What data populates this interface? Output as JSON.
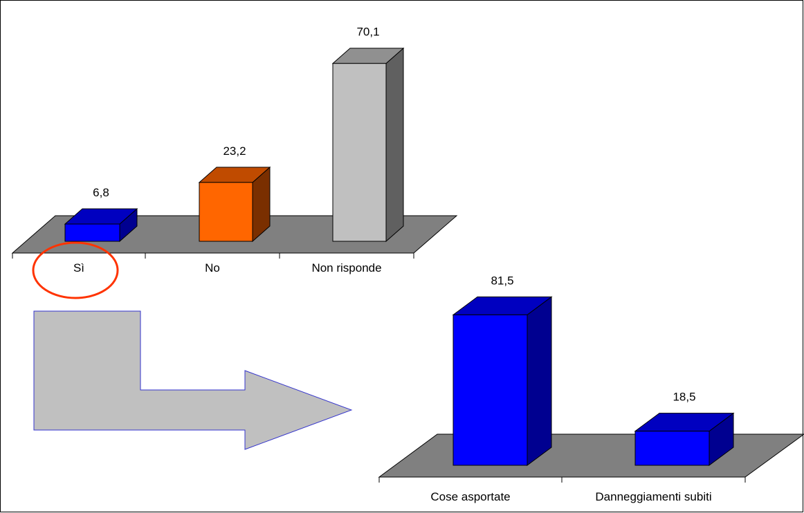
{
  "chart_data": [
    {
      "type": "bar",
      "categories": [
        "Sì",
        "No",
        "Non risponde"
      ],
      "values": [
        6.8,
        23.2,
        70.1
      ],
      "value_labels": [
        "6,8",
        "23,2",
        "70,1"
      ],
      "title": "",
      "xlabel": "",
      "ylabel": "",
      "ylim": [
        0,
        75
      ],
      "grid": false,
      "three_d": true,
      "bar_colors": [
        {
          "front": "#0000ff",
          "top": "#0000c0",
          "side": "#000090"
        },
        {
          "front": "#ff6600",
          "top": "#c04b00",
          "side": "#7a2f00"
        },
        {
          "front": "#c0c0c0",
          "top": "#909090",
          "side": "#606060"
        }
      ],
      "highlighted_category": "Sì"
    },
    {
      "type": "bar",
      "categories": [
        "Cose asportate",
        "Danneggiamenti subiti"
      ],
      "values": [
        81.5,
        18.5
      ],
      "value_labels": [
        "81,5",
        "18,5"
      ],
      "title": "",
      "xlabel": "",
      "ylabel": "",
      "ylim": [
        0,
        85
      ],
      "grid": false,
      "three_d": true,
      "bar_colors": [
        {
          "front": "#0000ff",
          "top": "#0000c0",
          "side": "#000090"
        },
        {
          "front": "#0000ff",
          "top": "#0000c0",
          "side": "#000090"
        }
      ]
    }
  ],
  "colors": {
    "floor": "#808080",
    "arrow_fill": "#c0c0c0",
    "arrow_stroke": "#3333cc",
    "highlight_circle": "#ff3300"
  },
  "icons": [
    "highlight-circle",
    "right-arrow-icon"
  ]
}
